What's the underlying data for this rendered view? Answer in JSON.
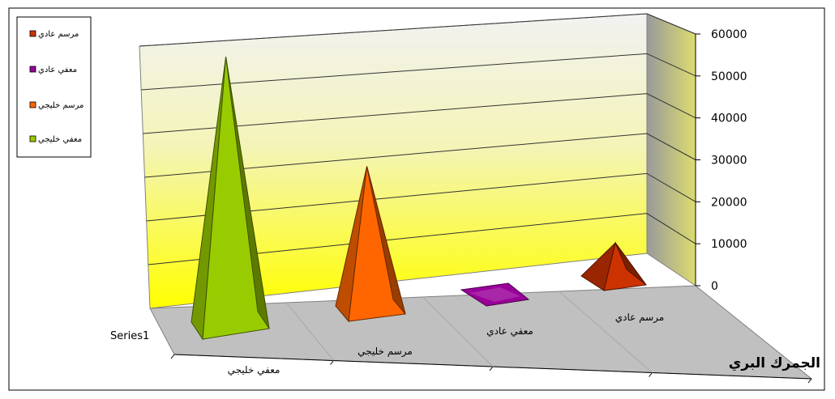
{
  "chart_data": {
    "type": "bar",
    "chart_style": "3d-pyramid",
    "title": "الجمرك البري",
    "series_name": "Series1",
    "categories": [
      "معفي خليجي",
      "مرسم خليجي",
      "معفي عادي",
      "مرسم عادي"
    ],
    "values": [
      55000,
      30000,
      500,
      8000
    ],
    "colors": [
      "#99CC00",
      "#FF6600",
      "#990099",
      "#CC3300"
    ],
    "ylim": [
      0,
      60000
    ],
    "yticks": [
      "0",
      "10000",
      "20000",
      "30000",
      "40000",
      "50000",
      "60000"
    ],
    "grid": true,
    "legend": {
      "position": "top-left",
      "items": [
        {
          "label": "مرسم عادي",
          "color": "#CC3300"
        },
        {
          "label": "معفي عادي",
          "color": "#990099"
        },
        {
          "label": "مرسم خليجي",
          "color": "#FF6600"
        },
        {
          "label": "معفي خليجي",
          "color": "#99CC00"
        }
      ]
    }
  }
}
